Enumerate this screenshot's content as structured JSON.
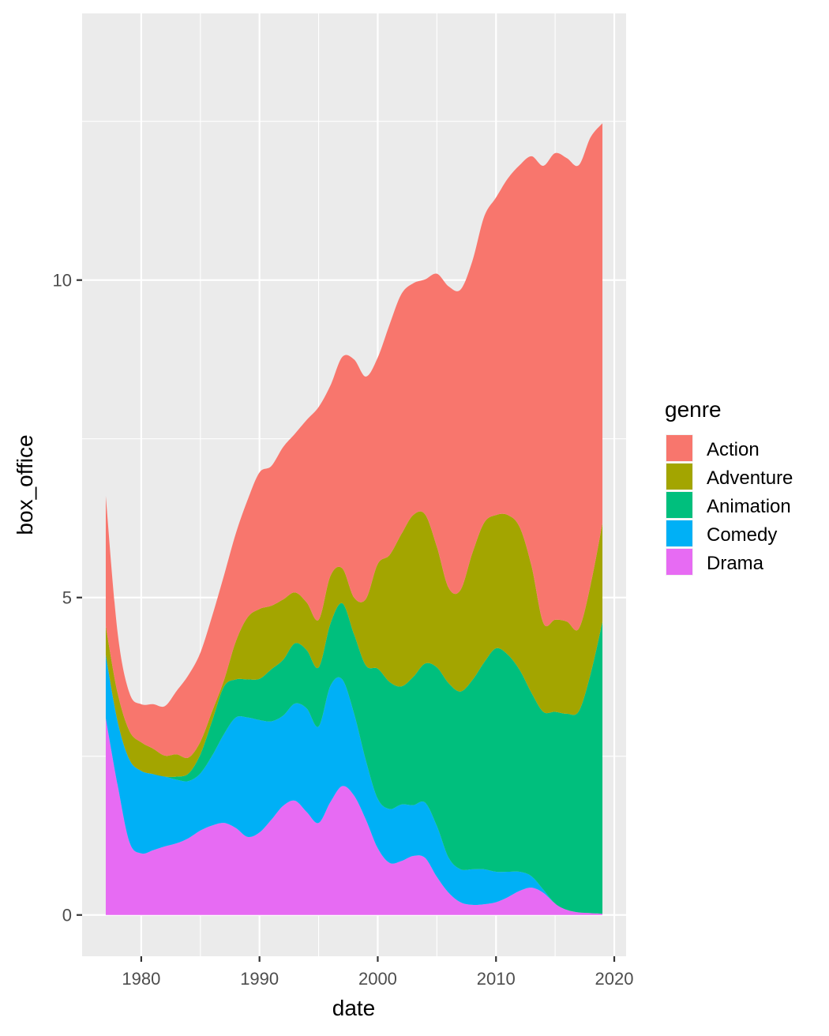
{
  "chart_data": {
    "type": "area",
    "stacked": true,
    "xlabel": "date",
    "ylabel": "box_office",
    "xlim": [
      1975,
      2021
    ],
    "ylim": [
      -0.65,
      14.2
    ],
    "x_ticks": [
      1980,
      1990,
      2000,
      2010,
      2020
    ],
    "y_ticks": [
      0,
      5,
      10
    ],
    "grid": true,
    "legend": {
      "title": "genre",
      "position": "right"
    },
    "x": [
      1977,
      1978,
      1979,
      1980,
      1981,
      1982,
      1983,
      1984,
      1985,
      1986,
      1987,
      1988,
      1989,
      1990,
      1991,
      1992,
      1993,
      1994,
      1995,
      1996,
      1997,
      1998,
      1999,
      2000,
      2001,
      2002,
      2003,
      2004,
      2005,
      2006,
      2007,
      2008,
      2009,
      2010,
      2011,
      2012,
      2013,
      2014,
      2015,
      2016,
      2017,
      2018,
      2019
    ],
    "series": [
      {
        "name": "Drama",
        "color": "#E76BF3",
        "values": [
          3.1,
          2.05,
          1.15,
          0.97,
          1.02,
          1.08,
          1.13,
          1.21,
          1.33,
          1.41,
          1.45,
          1.37,
          1.23,
          1.3,
          1.5,
          1.72,
          1.8,
          1.62,
          1.45,
          1.78,
          2.03,
          1.88,
          1.5,
          1.05,
          0.82,
          0.85,
          0.93,
          0.9,
          0.6,
          0.35,
          0.2,
          0.16,
          0.17,
          0.2,
          0.28,
          0.38,
          0.43,
          0.35,
          0.18,
          0.08,
          0.04,
          0.03,
          0.02
        ]
      },
      {
        "name": "Comedy",
        "color": "#00B0F6",
        "values": [
          1.0,
          1.0,
          1.3,
          1.3,
          1.2,
          1.1,
          1.0,
          0.9,
          0.9,
          1.1,
          1.4,
          1.74,
          1.88,
          1.77,
          1.55,
          1.42,
          1.53,
          1.63,
          1.52,
          1.83,
          1.68,
          1.29,
          0.93,
          0.78,
          0.85,
          0.89,
          0.8,
          0.87,
          0.8,
          0.55,
          0.52,
          0.56,
          0.55,
          0.48,
          0.4,
          0.3,
          0.18,
          0.05,
          0.0,
          0.0,
          0.0,
          0.0,
          0.0
        ]
      },
      {
        "name": "Animation",
        "color": "#00BF7D",
        "values": [
          0.0,
          0.0,
          0.0,
          0.0,
          0.0,
          0.0,
          0.05,
          0.12,
          0.3,
          0.55,
          0.75,
          0.6,
          0.6,
          0.65,
          0.82,
          0.88,
          0.95,
          0.92,
          0.93,
          0.98,
          1.2,
          1.25,
          1.5,
          2.05,
          2.0,
          1.86,
          2.02,
          2.19,
          2.5,
          2.75,
          2.8,
          2.98,
          3.26,
          3.52,
          3.42,
          3.18,
          2.89,
          2.8,
          3.02,
          3.09,
          3.17,
          3.77,
          4.6
        ]
      },
      {
        "name": "Adventure",
        "color": "#A3A500",
        "values": [
          0.45,
          0.45,
          0.45,
          0.45,
          0.4,
          0.33,
          0.35,
          0.25,
          0.2,
          0.15,
          0.1,
          0.6,
          0.98,
          1.1,
          1.0,
          0.95,
          0.8,
          0.75,
          0.75,
          0.75,
          0.55,
          0.58,
          1.05,
          1.65,
          2.0,
          2.4,
          2.55,
          2.35,
          1.9,
          1.5,
          1.6,
          2.0,
          2.2,
          2.1,
          2.2,
          2.25,
          2.0,
          1.4,
          1.45,
          1.45,
          1.3,
          1.4,
          1.55
        ]
      },
      {
        "name": "Action",
        "color": "#F8766D",
        "values": [
          2.05,
          0.95,
          0.6,
          0.6,
          0.7,
          0.78,
          1.0,
          1.3,
          1.4,
          1.5,
          1.65,
          1.7,
          1.85,
          2.15,
          2.2,
          2.4,
          2.5,
          2.88,
          3.35,
          3.0,
          3.33,
          3.75,
          3.5,
          3.25,
          3.63,
          3.78,
          3.65,
          3.7,
          4.3,
          4.75,
          4.73,
          4.6,
          4.82,
          5.0,
          5.3,
          5.7,
          6.45,
          7.2,
          7.35,
          7.3,
          7.3,
          7.05,
          6.3
        ]
      }
    ]
  }
}
